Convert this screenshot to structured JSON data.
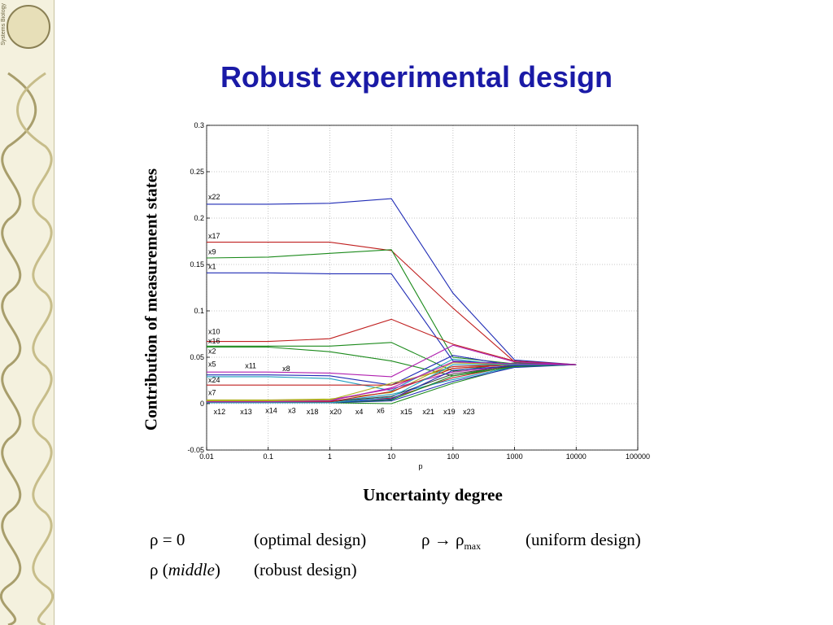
{
  "slide": {
    "title": "Robust experimental design",
    "sidebar_caption": "Systems Biology"
  },
  "chart_data": {
    "type": "line",
    "x_scale": "log",
    "x": [
      0.01,
      0.1,
      1,
      10,
      100,
      1000,
      10000
    ],
    "xlim": [
      0.01,
      100000
    ],
    "ylim": [
      -0.05,
      0.3
    ],
    "grid": true,
    "xlabel": "p",
    "ylabel": "Contribution of measurement states",
    "outer_xlabel": "Uncertainty degree",
    "x_tick_labels": [
      "0.01",
      "0.1",
      "1",
      "10",
      "100",
      "1000",
      "10000",
      "100000"
    ],
    "y_tick_labels": [
      "-0.05",
      "0",
      "0.05",
      "0.1",
      "0.15",
      "0.2",
      "0.25",
      "0.3"
    ],
    "y_ticks": [
      -0.05,
      0,
      0.05,
      0.1,
      0.15,
      0.2,
      0.25,
      0.3
    ],
    "series": [
      {
        "name": "x22",
        "color": "#1f2bb5",
        "values": [
          0.215,
          0.215,
          0.216,
          0.221,
          0.119,
          0.047,
          0.042
        ]
      },
      {
        "name": "x17",
        "color": "#c02020",
        "values": [
          0.174,
          0.174,
          0.174,
          0.165,
          0.103,
          0.045,
          0.042
        ]
      },
      {
        "name": "x9",
        "color": "#1b8a1b",
        "values": [
          0.157,
          0.158,
          0.162,
          0.166,
          0.05,
          0.043,
          0.042
        ]
      },
      {
        "name": "x1",
        "color": "#1f2bb5",
        "values": [
          0.141,
          0.141,
          0.14,
          0.14,
          0.046,
          0.043,
          0.042
        ]
      },
      {
        "name": "x10",
        "color": "#c02020",
        "values": [
          0.067,
          0.067,
          0.07,
          0.091,
          0.064,
          0.046,
          0.042
        ]
      },
      {
        "name": "x16",
        "color": "#1b8a1b",
        "values": [
          0.062,
          0.062,
          0.062,
          0.066,
          0.035,
          0.044,
          0.042
        ]
      },
      {
        "name": "x2",
        "color": "#1b8a1b",
        "values": [
          0.061,
          0.061,
          0.056,
          0.046,
          0.03,
          0.042,
          0.042
        ]
      },
      {
        "name": "x5",
        "color": "#b020b0",
        "values": [
          0.034,
          0.034,
          0.033,
          0.029,
          0.063,
          0.045,
          0.042
        ]
      },
      {
        "name": "x11",
        "color": "#1f2bb5",
        "values": [
          0.031,
          0.031,
          0.03,
          0.02,
          0.052,
          0.041,
          0.042
        ]
      },
      {
        "name": "x8",
        "color": "#20a0c0",
        "values": [
          0.029,
          0.029,
          0.027,
          0.014,
          0.048,
          0.041,
          0.042
        ]
      },
      {
        "name": "x24",
        "color": "#c02020",
        "values": [
          0.02,
          0.02,
          0.02,
          0.02,
          0.04,
          0.042,
          0.042
        ]
      },
      {
        "name": "x7",
        "color": "#b0b020",
        "values": [
          0.004,
          0.004,
          0.005,
          0.012,
          0.044,
          0.042,
          0.042
        ]
      },
      {
        "name": "x12",
        "color": "#1b8a1b",
        "values": [
          0.001,
          0.001,
          0.001,
          0.0,
          0.022,
          0.04,
          0.042
        ]
      },
      {
        "name": "x13",
        "color": "#1f2bb5",
        "values": [
          0.001,
          0.001,
          0.001,
          0.003,
          0.024,
          0.039,
          0.042
        ]
      },
      {
        "name": "x14",
        "color": "#c02020",
        "values": [
          0.002,
          0.002,
          0.003,
          0.006,
          0.028,
          0.041,
          0.042
        ]
      },
      {
        "name": "x3",
        "color": "#20a0c0",
        "values": [
          0.002,
          0.002,
          0.002,
          0.01,
          0.026,
          0.04,
          0.042
        ]
      },
      {
        "name": "x18",
        "color": "#b020b0",
        "values": [
          0.003,
          0.003,
          0.004,
          0.016,
          0.034,
          0.041,
          0.042
        ]
      },
      {
        "name": "x20",
        "color": "#b0b020",
        "values": [
          0.003,
          0.003,
          0.004,
          0.022,
          0.038,
          0.042,
          0.042
        ]
      },
      {
        "name": "x4",
        "color": "#404040",
        "values": [
          0.001,
          0.001,
          0.002,
          0.008,
          0.032,
          0.041,
          0.042
        ]
      },
      {
        "name": "x6",
        "color": "#1b8a1b",
        "values": [
          0.001,
          0.001,
          0.001,
          0.004,
          0.03,
          0.04,
          0.042
        ]
      },
      {
        "name": "x15",
        "color": "#1f2bb5",
        "values": [
          0.001,
          0.001,
          0.001,
          0.005,
          0.036,
          0.041,
          0.042
        ]
      },
      {
        "name": "x21",
        "color": "#c02020",
        "values": [
          0.002,
          0.002,
          0.002,
          0.013,
          0.038,
          0.042,
          0.042
        ]
      },
      {
        "name": "x19",
        "color": "#20a0c0",
        "values": [
          0.001,
          0.001,
          0.001,
          0.007,
          0.042,
          0.042,
          0.042
        ]
      },
      {
        "name": "x23",
        "color": "#b020b0",
        "values": [
          0.002,
          0.002,
          0.003,
          0.017,
          0.045,
          0.043,
          0.042
        ]
      }
    ],
    "left_labels": [
      {
        "text": "x22",
        "y": 0.22
      },
      {
        "text": "x17",
        "y": 0.178
      },
      {
        "text": "x9",
        "y": 0.161
      },
      {
        "text": "x1",
        "y": 0.145
      },
      {
        "text": "x10",
        "y": 0.075
      },
      {
        "text": "x16",
        "y": 0.065
      },
      {
        "text": "x2",
        "y": 0.054
      },
      {
        "text": "x5",
        "y": 0.04
      },
      {
        "text": "x24",
        "y": 0.023
      },
      {
        "text": "x7",
        "y": 0.009
      }
    ],
    "inline_labels": [
      {
        "text": "x11",
        "x": 0.042,
        "y": 0.038
      },
      {
        "text": "x8",
        "x": 0.17,
        "y": 0.035
      }
    ],
    "bottom_labels": [
      "x12",
      "x13",
      "x14",
      "x3",
      "x18",
      "x20",
      "x4",
      "x6",
      "x15",
      "x21",
      "x19",
      "x23"
    ],
    "bottom_label_x": [
      0.013,
      0.035,
      0.09,
      0.21,
      0.42,
      1.0,
      2.6,
      5.8,
      14,
      32,
      70,
      145
    ],
    "bottom_label_y": [
      -0.006,
      -0.006,
      -0.005,
      -0.005,
      -0.006,
      -0.006,
      -0.006,
      -0.005,
      -0.006,
      -0.006,
      -0.006,
      -0.006
    ]
  },
  "notes": {
    "line1_a": "ρ = 0",
    "line1_b": "(optimal design)",
    "line1_c": "ρ → ρ",
    "line1_c_sub": "max",
    "line1_d": "(uniform design)",
    "line2_a_pre": "ρ (",
    "line2_a_italic": "middle",
    "line2_a_post": ")",
    "line2_b": "(robust design)"
  }
}
